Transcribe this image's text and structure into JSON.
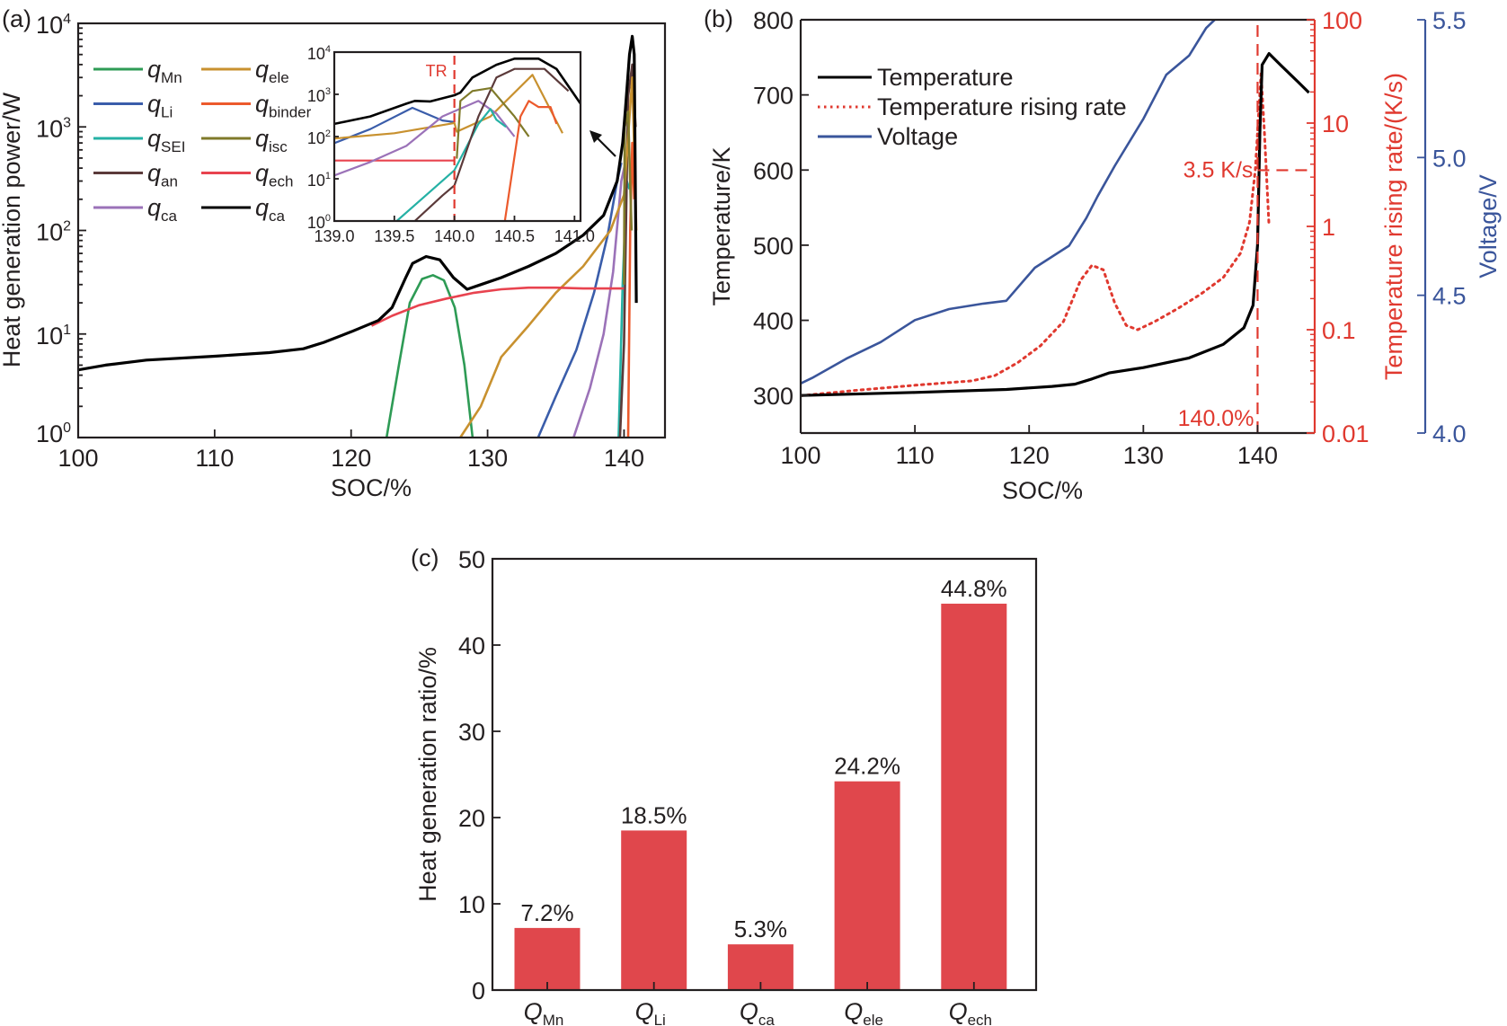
{
  "chart_data": [
    {
      "panel": "(a)",
      "type": "line",
      "xlabel": "SOC/%",
      "ylabel": "Heat generation power/W",
      "xlim": [
        100,
        143
      ],
      "ylim": [
        1,
        10000
      ],
      "yscale": "log",
      "xticks": [
        100,
        110,
        120,
        130,
        140
      ],
      "yticks": [
        {
          "base": "10",
          "exp": "0"
        },
        {
          "base": "10",
          "exp": "1"
        },
        {
          "base": "10",
          "exp": "2"
        },
        {
          "base": "10",
          "exp": "3"
        },
        {
          "base": "10",
          "exp": "4"
        }
      ],
      "legend": {
        "placement": "top-left",
        "columns": 2
      },
      "series": [
        {
          "key": "qMn",
          "name": "q",
          "sub": "Mn",
          "color": "#2e9b55",
          "x": [
            122.6,
            123.5,
            124.3,
            125.2,
            126.0,
            126.8,
            127.6,
            128.3,
            128.9
          ],
          "y": [
            1,
            5,
            20,
            34,
            37,
            33,
            18,
            5,
            1
          ]
        },
        {
          "key": "qLi",
          "name": "q",
          "sub": "Li",
          "color": "#3a5daa",
          "x": [
            133.7,
            135,
            136.5,
            137.8,
            138.8,
            139.5,
            139.8
          ],
          "y": [
            1,
            2.5,
            7,
            25,
            90,
            300,
            450
          ]
        },
        {
          "key": "qSEI",
          "name": "q",
          "sub": "SEI",
          "color": "#25b1a5",
          "x": [
            139.6,
            139.9,
            140.2,
            140.4
          ],
          "y": [
            1,
            30,
            300,
            250
          ]
        },
        {
          "key": "qan",
          "name": "q",
          "sub": "an",
          "color": "#5b3a3a",
          "x": [
            139.7,
            140.0,
            140.3,
            140.6,
            140.85
          ],
          "y": [
            1,
            8,
            2000,
            4000,
            1000
          ]
        },
        {
          "key": "qca",
          "name": "q",
          "sub": "ca",
          "color": "#9b72b8",
          "x": [
            136.3,
            137.5,
            138.5,
            139.2,
            139.8,
            140.3
          ],
          "y": [
            1,
            3,
            10,
            40,
            300,
            600
          ]
        },
        {
          "key": "qele",
          "name": "q",
          "sub": "ele",
          "color": "#c8912f",
          "x": [
            128.0,
            129.5,
            131,
            133,
            135,
            137,
            139,
            140,
            140.6,
            140.9
          ],
          "y": [
            1,
            2,
            6,
            12,
            25,
            45,
            100,
            220,
            3000,
            100
          ]
        },
        {
          "key": "qbinder",
          "name": "q",
          "sub": "binder",
          "color": "#ec5a2c",
          "x": [
            140.3,
            140.45,
            140.6,
            140.75
          ],
          "y": [
            1,
            100,
            700,
            200
          ]
        },
        {
          "key": "qisc",
          "name": "q",
          "sub": "isc",
          "color": "#7f7a2a",
          "x": [
            140.0,
            140.05,
            140.3,
            140.55
          ],
          "y": [
            30,
            1000,
            1400,
            100
          ]
        },
        {
          "key": "qech",
          "name": "q",
          "sub": "ech",
          "color": "#e8434f",
          "x": [
            121.5,
            123,
            125,
            127,
            129,
            131,
            133,
            135,
            137,
            140
          ],
          "y": [
            12,
            15,
            19,
            22,
            25,
            27,
            28,
            28,
            27.5,
            27.5
          ]
        },
        {
          "key": "qtotal",
          "name": "q",
          "sub": "ca",
          "color": "#000000",
          "x": [
            100,
            102,
            105,
            110,
            114,
            116.5,
            118,
            120,
            122,
            123,
            124,
            124.5,
            125.5,
            126.5,
            127.5,
            128.5,
            129.5,
            131,
            133,
            135,
            137,
            138.5,
            139.5,
            139.9,
            140.1,
            140.4,
            140.6,
            140.75,
            140.9
          ],
          "y": [
            4.5,
            5.0,
            5.6,
            6.1,
            6.6,
            7.2,
            8.3,
            10.5,
            13.5,
            18,
            35,
            48,
            56,
            52,
            35,
            27,
            30,
            35,
            45,
            60,
            90,
            140,
            300,
            700,
            1500,
            5000,
            7500,
            5000,
            20
          ]
        }
      ],
      "inset": {
        "xlim": [
          139.0,
          141.05
        ],
        "ylim": [
          1,
          10000
        ],
        "yscale": "log",
        "xticks": [
          "139.0",
          "139.5",
          "140.0",
          "140.5",
          "141.0"
        ],
        "xtick_values": [
          139.0,
          139.5,
          140.0,
          140.5,
          141.0
        ],
        "yticks": [
          {
            "base": "10",
            "exp": "0"
          },
          {
            "base": "10",
            "exp": "1"
          },
          {
            "base": "10",
            "exp": "2"
          },
          {
            "base": "10",
            "exp": "3"
          },
          {
            "base": "10",
            "exp": "4"
          }
        ],
        "annotation": "TR",
        "tr_x": 140.0,
        "series": [
          {
            "key": "qLi",
            "color": "#3a5daa",
            "x": [
              139.0,
              139.3,
              139.65,
              139.9,
              140.0
            ],
            "y": [
              70,
              150,
              480,
              240,
              220
            ]
          },
          {
            "key": "qele",
            "color": "#c8912f",
            "x": [
              139.0,
              139.5,
              140.0,
              140.02,
              140.3,
              140.65,
              140.9
            ],
            "y": [
              90,
              120,
              210,
              130,
              300,
              2900,
              120
            ]
          },
          {
            "key": "qech",
            "color": "#e8434f",
            "x": [
              139.0,
              140.0
            ],
            "y": [
              27,
              27
            ]
          },
          {
            "key": "qca",
            "color": "#9b72b8",
            "x": [
              139.0,
              139.3,
              139.6,
              139.9,
              140.2,
              140.35,
              140.5
            ],
            "y": [
              12,
              25,
              60,
              300,
              700,
              350,
              100
            ]
          },
          {
            "key": "qSEI",
            "color": "#25b1a5",
            "x": [
              139.52,
              139.8,
              140.0,
              140.2,
              140.3,
              140.35,
              140.43
            ],
            "y": [
              1,
              5,
              16,
              200,
              450,
              250,
              170
            ]
          },
          {
            "key": "qan",
            "color": "#5b3a3a",
            "x": [
              139.67,
              139.9,
              140.0,
              140.2,
              140.35,
              140.5,
              140.75,
              140.95
            ],
            "y": [
              1,
              4,
              7,
              300,
              2500,
              4000,
              4000,
              1200
            ]
          },
          {
            "key": "qisc",
            "color": "#7f7a2a",
            "x": [
              140.02,
              140.05,
              140.15,
              140.3,
              140.5,
              140.62
            ],
            "y": [
              30,
              700,
              1200,
              1400,
              300,
              100
            ]
          },
          {
            "key": "qbinder",
            "color": "#ec5a2c",
            "x": [
              140.42,
              140.55,
              140.62,
              140.7,
              140.8,
              140.85
            ],
            "y": [
              1,
              300,
              700,
              500,
              500,
              200
            ]
          },
          {
            "key": "qtotal",
            "color": "#000000",
            "x": [
              139.0,
              139.3,
              139.6,
              139.67,
              139.8,
              140.0,
              140.05,
              140.15,
              140.35,
              140.5,
              140.7,
              140.85,
              141.05
            ],
            "y": [
              200,
              300,
              600,
              700,
              680,
              950,
              1100,
              2500,
              5000,
              7000,
              7000,
              4000,
              600
            ]
          }
        ]
      }
    },
    {
      "panel": "(b)",
      "type": "line",
      "xlabel": "SOC/%",
      "xlim": [
        100,
        145
      ],
      "xticks": [
        100,
        110,
        120,
        130,
        140
      ],
      "y_left": {
        "label": "Temperature/K",
        "lim": [
          250,
          800
        ],
        "ticks": [
          300,
          400,
          500,
          600,
          700,
          800
        ],
        "color": "#000000"
      },
      "y_right1": {
        "label": "Temperature rising rate/(K/s)",
        "lim": [
          0.01,
          100
        ],
        "scale": "log",
        "ticks": [
          "0.01",
          "0.1",
          "1",
          "10",
          "100"
        ],
        "color": "#e0392f"
      },
      "y_right2": {
        "label": "Voltage/V",
        "lim": [
          4.0,
          5.5
        ],
        "ticks": [
          "4.0",
          "4.5",
          "5.0",
          "5.5"
        ],
        "color": "#3a559b"
      },
      "legend": {
        "placement": "top-left",
        "entries": [
          "Temperature",
          "Temperature rising rate",
          "Voltage"
        ]
      },
      "series": [
        {
          "name": "Temperature",
          "axis": "left",
          "color": "#000000",
          "style": "solid",
          "x": [
            100,
            110,
            118,
            122,
            124,
            125.5,
            127,
            130,
            134,
            137,
            138.8,
            139.6,
            140.0,
            140.2,
            140.4,
            141.0,
            142.0,
            143.5,
            144.5
          ],
          "y": [
            300,
            304,
            308,
            312,
            315,
            322,
            330,
            337,
            350,
            368,
            390,
            420,
            500,
            650,
            740,
            755,
            740,
            718,
            703
          ]
        },
        {
          "name": "Temperature rising rate",
          "axis": "right1",
          "color": "#e0392f",
          "style": "dotted",
          "x": [
            100,
            105,
            110,
            115,
            117,
            119,
            121,
            123,
            124.5,
            125.5,
            126.5,
            127.5,
            128.5,
            129.5,
            131,
            133,
            135,
            137,
            138.5,
            139.3,
            139.8,
            140.3,
            140.6,
            141.0
          ],
          "y": [
            0.023,
            0.026,
            0.029,
            0.032,
            0.036,
            0.048,
            0.07,
            0.12,
            0.3,
            0.42,
            0.38,
            0.18,
            0.11,
            0.1,
            0.12,
            0.16,
            0.22,
            0.32,
            0.55,
            1.1,
            3.5,
            30,
            8,
            1
          ]
        },
        {
          "name": "Voltage",
          "axis": "right2",
          "color": "#3a559b",
          "style": "solid",
          "x": [
            100,
            101,
            104,
            107,
            110,
            113,
            116,
            118,
            120.5,
            123.5,
            125,
            126,
            127.5,
            130,
            132,
            134,
            135.5,
            137.5,
            139,
            140
          ],
          "y": [
            4.18,
            4.2,
            4.27,
            4.33,
            4.41,
            4.45,
            4.47,
            4.48,
            4.6,
            4.68,
            4.78,
            4.86,
            4.97,
            5.14,
            5.3,
            5.37,
            5.47,
            5.55,
            5.63,
            5.68
          ]
        }
      ],
      "annotations": {
        "rate_label": "3.5 K/s",
        "rate_value": 3.5,
        "soc_label": "140.0%",
        "soc_value": 140.0
      }
    },
    {
      "panel": "(c)",
      "type": "bar",
      "ylabel": "Heat generation ratio/%",
      "ylim": [
        0,
        50
      ],
      "yticks": [
        0,
        10,
        20,
        30,
        40,
        50
      ],
      "categories": [
        {
          "base": "Q",
          "sub": "Mn"
        },
        {
          "base": "Q",
          "sub": "Li"
        },
        {
          "base": "Q",
          "sub": "ca"
        },
        {
          "base": "Q",
          "sub": "ele"
        },
        {
          "base": "Q",
          "sub": "ech"
        }
      ],
      "values": [
        7.2,
        18.5,
        5.3,
        24.2,
        44.8
      ],
      "labels": [
        "7.2%",
        "18.5%",
        "5.3%",
        "24.2%",
        "44.8%"
      ],
      "color": "#e0474c"
    }
  ]
}
